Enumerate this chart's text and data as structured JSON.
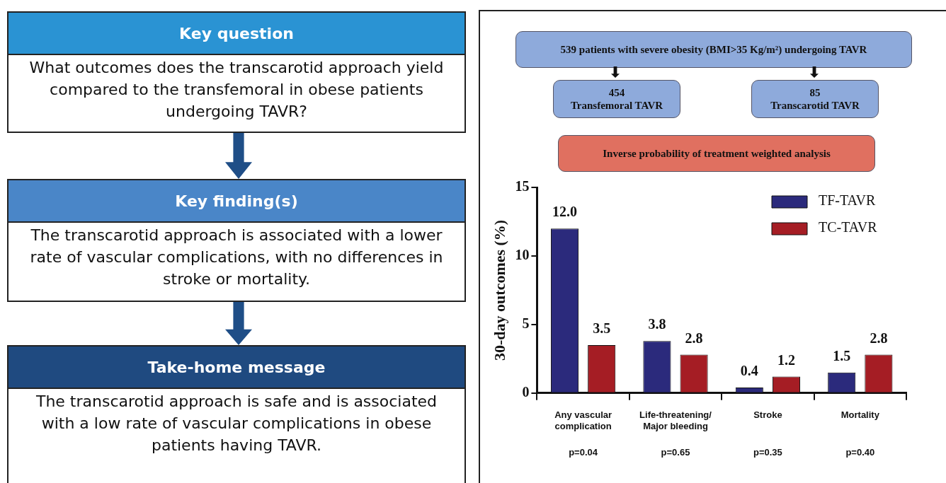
{
  "chart_data": [
    {
      "type": "other",
      "annotations": [
        "Key question",
        "What outcomes does the transcarotid approach yield compared to the transfemoral in obese patients undergoing TAVR?",
        "Key finding(s)",
        "The transcarotid approach is associated with a lower rate of vascular complications, with no differences in stroke or mortality.",
        "Take-home message",
        "The transcarotid approach is safe and is associated with a low rate of vascular complications in obese patients having TAVR."
      ]
    },
    {
      "type": "other",
      "annotations": [
        "539 patients with severe obesity (BMI>35 Kg/m²) undergoing TAVR",
        "454\nTransfemoral TAVR",
        "85\nTranscarotid TAVR",
        "Inverse probability of treatment weighted analysis"
      ]
    },
    {
      "type": "bar",
      "ylabel": "30-day outcomes (%)",
      "categories": [
        "Any vascular\ncomplication",
        "Life-threatening/\nMajor bleeding",
        "Stroke",
        "Mortality"
      ],
      "series": [
        {
          "name": "TF-TAVR",
          "color": "#2b2a7c",
          "values": [
            12.0,
            3.8,
            0.4,
            1.5
          ],
          "value_labels": [
            "12.0",
            "3.8",
            "0.4",
            "1.5"
          ]
        },
        {
          "name": "TC-TAVR",
          "color": "#a51d24",
          "values": [
            3.5,
            2.8,
            1.2,
            2.8
          ],
          "value_labels": [
            "3.5",
            "2.8",
            "1.2",
            "2.8"
          ]
        }
      ],
      "annotations": [
        "p=0.04",
        "p=0.65",
        "p=0.35",
        "p=0.40"
      ],
      "ylim": [
        0,
        15
      ],
      "yticks": [
        0,
        5,
        10,
        15
      ],
      "grid": false,
      "legend": "top right"
    }
  ]
}
